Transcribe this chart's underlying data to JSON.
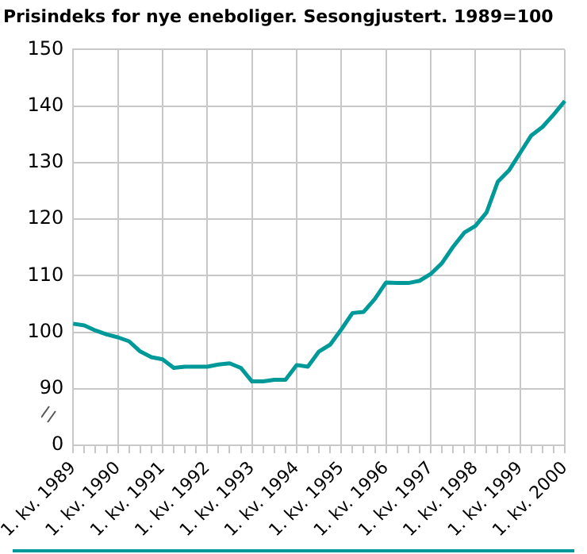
{
  "chart_data": {
    "type": "line",
    "title": "Prisindeks for nye eneboliger. Sesongjustert. 1989=100",
    "categories": [
      "1. kv. 1989",
      null,
      null,
      null,
      "1. kv. 1990",
      null,
      null,
      null,
      "1. kv. 1991",
      null,
      null,
      null,
      "1. kv. 1992",
      null,
      null,
      null,
      "1. kv. 1993",
      null,
      null,
      null,
      "1. kv. 1994",
      null,
      null,
      null,
      "1. kv. 1995",
      null,
      null,
      null,
      "1. kv. 1996",
      null,
      null,
      null,
      "1. kv. 1997",
      null,
      null,
      null,
      "1. kv. 1998",
      null,
      null,
      null,
      "1. kv. 1999",
      null,
      null,
      null,
      "1. kv. 2000"
    ],
    "series": [
      {
        "color": "#009999",
        "values": [
          101.5,
          101.2,
          100.3,
          99.6,
          99.1,
          98.4,
          96.6,
          95.6,
          95.2,
          93.7,
          93.9,
          93.9,
          93.9,
          94.3,
          94.5,
          93.7,
          91.3,
          91.3,
          91.6,
          91.6,
          94.2,
          93.9,
          96.6,
          97.8,
          100.5,
          103.4,
          103.6,
          105.9,
          108.8,
          108.7,
          108.7,
          109.1,
          110.3,
          112.2,
          115.1,
          117.6,
          118.8,
          121.2,
          126.6,
          128.6,
          131.7,
          134.8,
          136.3,
          138.5,
          140.9
        ]
      }
    ],
    "ylim": [
      90,
      150
    ],
    "yticks": [
      90,
      100,
      110,
      120,
      130,
      140,
      150
    ],
    "annotations": [
      "0"
    ],
    "grid": true,
    "legend": false,
    "marker": "none",
    "line_style": "solid"
  }
}
